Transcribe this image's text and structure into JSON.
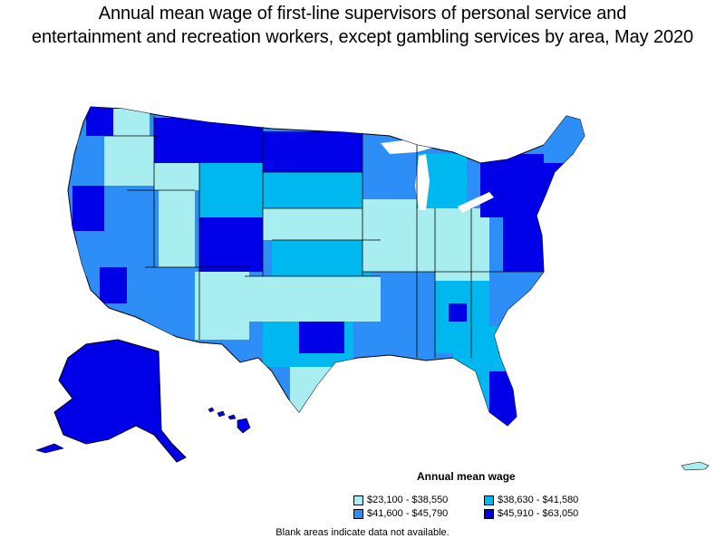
{
  "title_line1": "Annual mean wage of first-line supervisors of personal service and",
  "title_line2": "entertainment and recreation workers, except gambling services by area, May 2020",
  "colors": {
    "c1": "#a8eef0",
    "c2": "#00b8f0",
    "c3": "#2e8ef8",
    "c4": "#0000e8",
    "blank": "#ffffff",
    "border": "#000000"
  },
  "legend": {
    "title": "Annual mean wage",
    "items": [
      {
        "label": "$23,100 - $38,550",
        "color_key": "c1"
      },
      {
        "label": "$38,630 - $41,580",
        "color_key": "c2"
      },
      {
        "label": "$41,600 - $45,790",
        "color_key": "c3"
      },
      {
        "label": "$45,910 - $63,050",
        "color_key": "c4"
      }
    ]
  },
  "footnote": "Blank areas indicate data not available."
}
